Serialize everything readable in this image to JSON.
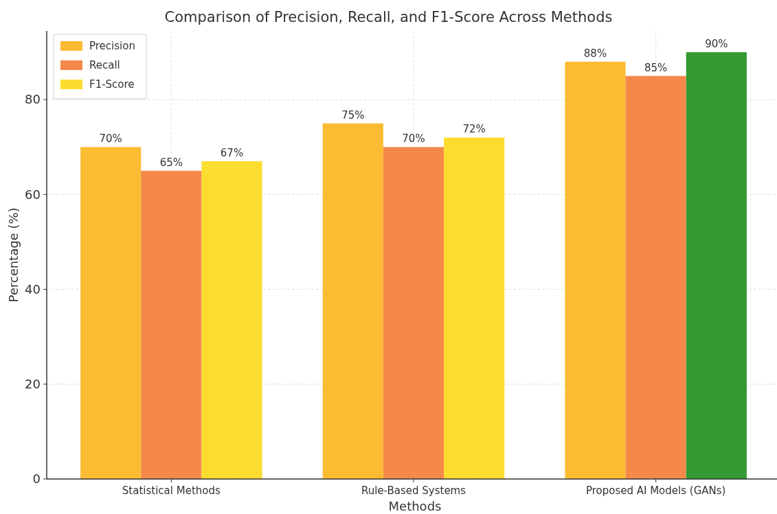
{
  "chart_data": {
    "type": "bar",
    "title": "Comparison of Precision, Recall, and F1-Score Across Methods",
    "xlabel": "Methods",
    "ylabel": "Percentage (%)",
    "categories": [
      "Statistical Methods",
      "Rule-Based Systems",
      "Proposed AI Models (GANs)"
    ],
    "series": [
      {
        "name": "Precision",
        "color": "#fbbc33",
        "values": [
          70,
          75,
          88
        ],
        "value_labels": [
          "70%",
          "75%",
          "88%"
        ]
      },
      {
        "name": "Recall",
        "color": "#f5894a",
        "values": [
          65,
          70,
          85
        ],
        "value_labels": [
          "65%",
          "70%",
          "85%"
        ]
      },
      {
        "name": "F1-Score",
        "color": "#fddc30",
        "colors": [
          "#fddc30",
          "#fddc30",
          "#339933"
        ],
        "values": [
          67,
          72,
          90
        ],
        "value_labels": [
          "67%",
          "72%",
          "90%"
        ]
      }
    ],
    "ylim": [
      0,
      94.5
    ],
    "yticks": [
      0,
      20,
      40,
      60,
      80
    ],
    "grid": true,
    "legend": "top left"
  }
}
